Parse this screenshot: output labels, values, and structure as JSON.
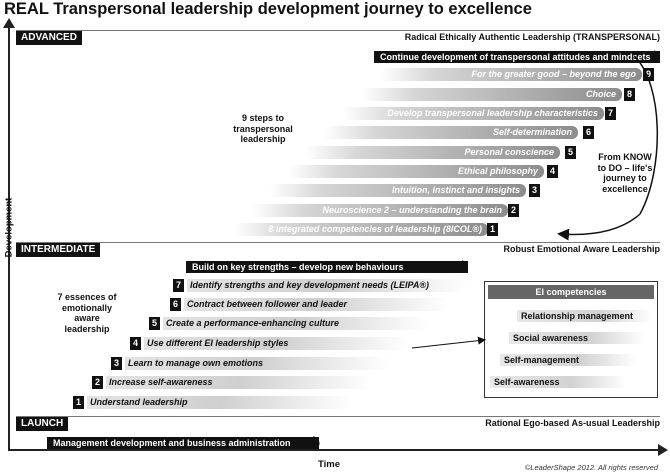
{
  "title": "REAL Transpersonal leadership development journey to excellence",
  "axes": {
    "y_label": "Development",
    "x_label": "Time"
  },
  "copyright": "©LeaderShape 2012. All rights reserved",
  "levels": {
    "advanced": {
      "tag": "ADVANCED",
      "description": "Radical Ethically Authentic Leadership (TRANSPERSONAL)"
    },
    "intermediate": {
      "tag": "INTERMEDIATE",
      "description": "Robust Emotional Aware Leadership"
    },
    "launch": {
      "tag": "LAUNCH",
      "description": "Rational Ego-based As-usual Leadership"
    }
  },
  "transpersonal": {
    "top_bar": "Continue development of transpersonal attitudes and mindsets",
    "steps": [
      {
        "num": "9",
        "label": "For the greater good – beyond the ego"
      },
      {
        "num": "8",
        "label": "Choice"
      },
      {
        "num": "7",
        "label": "Develop transpersonal leadership characteristics"
      },
      {
        "num": "6",
        "label": "Self-determination"
      },
      {
        "num": "5",
        "label": "Personal conscience"
      },
      {
        "num": "4",
        "label": "Ethical philosophy"
      },
      {
        "num": "3",
        "label": "Intuition, instinct and insights"
      },
      {
        "num": "2",
        "label": "Neuroscience 2 – understanding the brain"
      },
      {
        "num": "1",
        "label": "8 integrated competencies of leadership (8ICOL®)"
      }
    ],
    "steps_note": "9 steps to transpersonal leadership",
    "journey_note": "From KNOW to DO – life's journey to excellence"
  },
  "intermediate": {
    "top_bar": "Build on key strengths – develop new behaviours",
    "essences": [
      {
        "num": "7",
        "label": "Identify strengths and key development needs (LEIPA®)"
      },
      {
        "num": "6",
        "label": "Contract between follower and leader"
      },
      {
        "num": "5",
        "label": "Create a performance-enhancing culture"
      },
      {
        "num": "4",
        "label": "Use different EI leadership styles"
      },
      {
        "num": "3",
        "label": "Learn to manage own emotions"
      },
      {
        "num": "2",
        "label": "Increase self-awareness"
      },
      {
        "num": "1",
        "label": "Understand leadership"
      }
    ],
    "essences_note": "7 essences of emotionally aware leadership"
  },
  "ei_competencies": {
    "title": "EI competencies",
    "items": [
      "Relationship management",
      "Social awareness",
      "Self-management",
      "Self-awareness"
    ]
  },
  "launch": {
    "bar": "Management development and business administration"
  }
}
